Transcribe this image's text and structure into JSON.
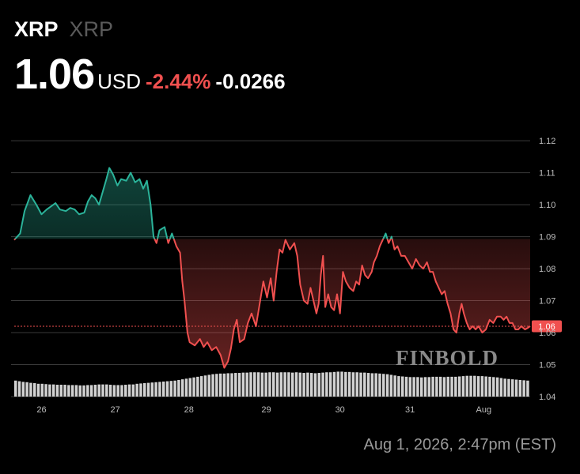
{
  "header": {
    "ticker": "XRP",
    "ticker_name": "XRP",
    "price": "1.06",
    "currency": "USD",
    "change_pct": "-2.44%",
    "change_abs": "-0.0266"
  },
  "timestamp": "Aug 1, 2026, 2:47pm (EST)",
  "watermark": "FINBOLD",
  "colors": {
    "up": "#2bb39a",
    "down": "#f0504f",
    "grid": "#3a3a3a",
    "axis_text": "#bdbdbd",
    "volume": "#d2d2d2",
    "background": "#000000"
  },
  "chart_data": {
    "type": "area",
    "x_ticks": [
      "26",
      "27",
      "28",
      "29",
      "30",
      "31",
      "Aug"
    ],
    "y_ticks": [
      "1.12",
      "1.11",
      "1.10",
      "1.09",
      "1.08",
      "1.07",
      "1.06",
      "1.05",
      "1.04"
    ],
    "ylim": [
      1.04,
      1.123
    ],
    "xlim": [
      0,
      7
    ],
    "x_tick_positions": [
      0.37,
      1.37,
      2.37,
      3.42,
      4.42,
      5.37,
      6.37
    ],
    "baseline": 1.0893,
    "current_value": 1.062,
    "current_label": "1.06",
    "series": [
      {
        "values": [
          [
            0.0,
            1.089
          ],
          [
            0.08,
            1.091
          ],
          [
            0.14,
            1.098
          ],
          [
            0.22,
            1.103
          ],
          [
            0.3,
            1.1
          ],
          [
            0.37,
            1.097
          ],
          [
            0.44,
            1.0985
          ],
          [
            0.5,
            1.0995
          ],
          [
            0.56,
            1.1005
          ],
          [
            0.62,
            1.0985
          ],
          [
            0.7,
            1.098
          ],
          [
            0.76,
            1.099
          ],
          [
            0.82,
            1.0985
          ],
          [
            0.88,
            1.097
          ],
          [
            0.95,
            1.0975
          ],
          [
            1.0,
            1.101
          ],
          [
            1.05,
            1.103
          ],
          [
            1.1,
            1.102
          ],
          [
            1.15,
            1.1
          ],
          [
            1.2,
            1.104
          ],
          [
            1.25,
            1.108
          ],
          [
            1.29,
            1.1115
          ],
          [
            1.34,
            1.1095
          ],
          [
            1.4,
            1.106
          ],
          [
            1.45,
            1.108
          ],
          [
            1.52,
            1.1075
          ],
          [
            1.58,
            1.11
          ],
          [
            1.64,
            1.107
          ],
          [
            1.7,
            1.108
          ],
          [
            1.75,
            1.105
          ],
          [
            1.8,
            1.1075
          ],
          [
            1.85,
            1.1
          ],
          [
            1.89,
            1.09
          ],
          [
            1.93,
            1.088
          ],
          [
            1.97,
            1.092
          ],
          [
            2.04,
            1.093
          ],
          [
            2.09,
            1.088
          ],
          [
            2.14,
            1.091
          ],
          [
            2.2,
            1.087
          ],
          [
            2.25,
            1.085
          ],
          [
            2.28,
            1.076
          ],
          [
            2.31,
            1.07
          ],
          [
            2.35,
            1.06
          ],
          [
            2.38,
            1.057
          ],
          [
            2.45,
            1.056
          ],
          [
            2.52,
            1.058
          ],
          [
            2.57,
            1.0555
          ],
          [
            2.62,
            1.057
          ],
          [
            2.68,
            1.0545
          ],
          [
            2.74,
            1.0555
          ],
          [
            2.8,
            1.053
          ],
          [
            2.85,
            1.049
          ],
          [
            2.9,
            1.051
          ],
          [
            2.94,
            1.055
          ],
          [
            2.98,
            1.061
          ],
          [
            3.02,
            1.064
          ],
          [
            3.06,
            1.057
          ],
          [
            3.12,
            1.058
          ],
          [
            3.17,
            1.063
          ],
          [
            3.22,
            1.066
          ],
          [
            3.28,
            1.062
          ],
          [
            3.33,
            1.069
          ],
          [
            3.38,
            1.076
          ],
          [
            3.43,
            1.071
          ],
          [
            3.48,
            1.077
          ],
          [
            3.52,
            1.07
          ],
          [
            3.56,
            1.079
          ],
          [
            3.6,
            1.086
          ],
          [
            3.64,
            1.085
          ],
          [
            3.68,
            1.089
          ],
          [
            3.74,
            1.086
          ],
          [
            3.8,
            1.088
          ],
          [
            3.84,
            1.084
          ],
          [
            3.88,
            1.075
          ],
          [
            3.93,
            1.07
          ],
          [
            3.98,
            1.069
          ],
          [
            4.02,
            1.074
          ],
          [
            4.06,
            1.07
          ],
          [
            4.1,
            1.066
          ],
          [
            4.13,
            1.069
          ],
          [
            4.16,
            1.078
          ],
          [
            4.19,
            1.084
          ],
          [
            4.22,
            1.068
          ],
          [
            4.26,
            1.072
          ],
          [
            4.3,
            1.068
          ],
          [
            4.34,
            1.067
          ],
          [
            4.38,
            1.072
          ],
          [
            4.42,
            1.066
          ],
          [
            4.46,
            1.079
          ],
          [
            4.5,
            1.076
          ],
          [
            4.55,
            1.074
          ],
          [
            4.6,
            1.073
          ],
          [
            4.64,
            1.076
          ],
          [
            4.68,
            1.075
          ],
          [
            4.72,
            1.081
          ],
          [
            4.76,
            1.078
          ],
          [
            4.8,
            1.077
          ],
          [
            4.85,
            1.079
          ],
          [
            4.88,
            1.082
          ],
          [
            4.92,
            1.084
          ],
          [
            4.96,
            1.087
          ],
          [
            5.0,
            1.089
          ],
          [
            5.04,
            1.091
          ],
          [
            5.08,
            1.088
          ],
          [
            5.12,
            1.09
          ],
          [
            5.16,
            1.086
          ],
          [
            5.2,
            1.087
          ],
          [
            5.25,
            1.084
          ],
          [
            5.3,
            1.084
          ],
          [
            5.35,
            1.082
          ],
          [
            5.4,
            1.08
          ],
          [
            5.45,
            1.083
          ],
          [
            5.5,
            1.081
          ],
          [
            5.55,
            1.08
          ],
          [
            5.6,
            1.082
          ],
          [
            5.64,
            1.079
          ],
          [
            5.68,
            1.079
          ],
          [
            5.72,
            1.076
          ],
          [
            5.76,
            1.074
          ],
          [
            5.8,
            1.072
          ],
          [
            5.84,
            1.073
          ],
          [
            5.88,
            1.069
          ],
          [
            5.92,
            1.066
          ],
          [
            5.96,
            1.061
          ],
          [
            6.0,
            1.06
          ],
          [
            6.04,
            1.066
          ],
          [
            6.07,
            1.069
          ],
          [
            6.1,
            1.066
          ],
          [
            6.14,
            1.063
          ],
          [
            6.18,
            1.061
          ],
          [
            6.22,
            1.062
          ],
          [
            6.26,
            1.061
          ],
          [
            6.3,
            1.062
          ],
          [
            6.35,
            1.06
          ],
          [
            6.4,
            1.061
          ],
          [
            6.45,
            1.064
          ],
          [
            6.5,
            1.063
          ],
          [
            6.55,
            1.065
          ],
          [
            6.6,
            1.065
          ],
          [
            6.64,
            1.064
          ],
          [
            6.68,
            1.065
          ],
          [
            6.72,
            1.063
          ],
          [
            6.76,
            1.063
          ],
          [
            6.8,
            1.061
          ],
          [
            6.84,
            1.061
          ],
          [
            6.88,
            1.062
          ],
          [
            6.93,
            1.061
          ],
          [
            6.97,
            1.0615
          ],
          [
            7.0,
            1.062
          ]
        ]
      }
    ],
    "volume": {
      "min": 1.04,
      "values": [
        1.045,
        1.0448,
        1.0446,
        1.0445,
        1.0443,
        1.0442,
        1.044,
        1.044,
        1.0439,
        1.0438,
        1.0438,
        1.0437,
        1.0437,
        1.0437,
        1.0436,
        1.0436,
        1.0436,
        1.0435,
        1.0435,
        1.0436,
        1.0436,
        1.0437,
        1.0438,
        1.0438,
        1.0438,
        1.0437,
        1.0436,
        1.0436,
        1.0436,
        1.0437,
        1.0438,
        1.0438,
        1.044,
        1.0441,
        1.0442,
        1.0443,
        1.0444,
        1.0445,
        1.0446,
        1.0447,
        1.0448,
        1.0449,
        1.045,
        1.0452,
        1.0454,
        1.0456,
        1.0458,
        1.046,
        1.0462,
        1.0464,
        1.0466,
        1.0468,
        1.047,
        1.0471,
        1.0472,
        1.0472,
        1.0473,
        1.0473,
        1.0474,
        1.0474,
        1.0475,
        1.0475,
        1.0476,
        1.0476,
        1.0476,
        1.0475,
        1.0475,
        1.0476,
        1.0476,
        1.0475,
        1.0476,
        1.0476,
        1.0476,
        1.0475,
        1.0476,
        1.0475,
        1.0474,
        1.0475,
        1.0474,
        1.0473,
        1.0474,
        1.0475,
        1.0476,
        1.0476,
        1.0477,
        1.0478,
        1.0478,
        1.0477,
        1.0477,
        1.0476,
        1.0476,
        1.0475,
        1.0475,
        1.0474,
        1.0473,
        1.0473,
        1.0472,
        1.0471,
        1.047,
        1.0468,
        1.0466,
        1.0464,
        1.0463,
        1.0462,
        1.0461,
        1.0461,
        1.0461,
        1.046,
        1.0461,
        1.0461,
        1.0462,
        1.0462,
        1.0462,
        1.0461,
        1.0462,
        1.0462,
        1.0462,
        1.0463,
        1.0464,
        1.0465,
        1.0465,
        1.0465,
        1.0464,
        1.0464,
        1.0463,
        1.0462,
        1.0461,
        1.046,
        1.0458,
        1.0456,
        1.0455,
        1.0454,
        1.0453,
        1.0452,
        1.0451,
        1.045
      ]
    }
  }
}
